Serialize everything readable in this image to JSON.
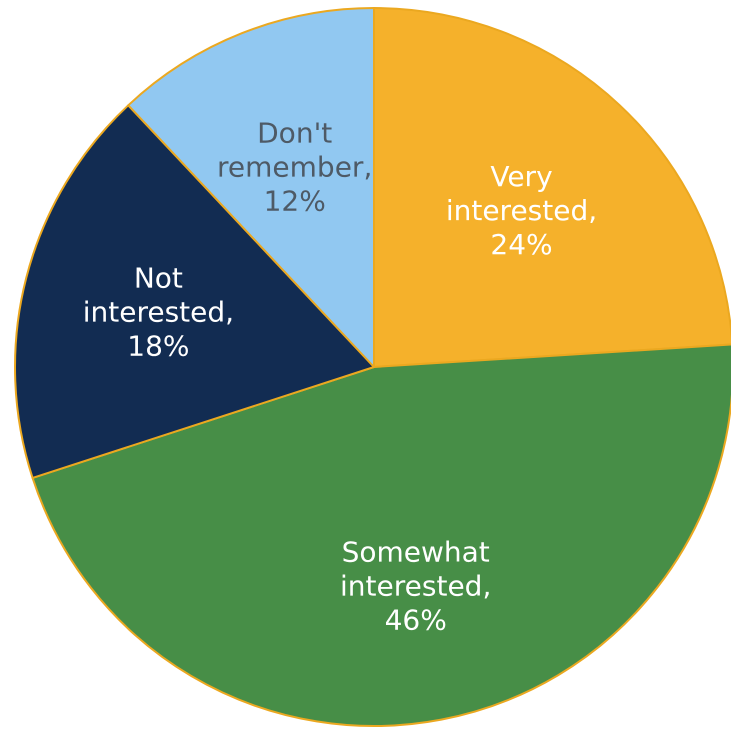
{
  "chart_data": {
    "type": "pie",
    "start_angle_deg": 0,
    "direction": "clockwise",
    "slices": [
      {
        "category": "Very interested",
        "value": 24,
        "label_lines": [
          "Very",
          "interested,",
          "24%"
        ],
        "color": "#F5B12B",
        "text_color": "#FFFFFF"
      },
      {
        "category": "Somewhat interested",
        "value": 46,
        "label_lines": [
          "Somewhat",
          "interested,",
          "46%"
        ],
        "color": "#478E47",
        "text_color": "#FFFFFF"
      },
      {
        "category": "Not interested",
        "value": 18,
        "label_lines": [
          "Not",
          "interested,",
          "18%"
        ],
        "color": "#122C52",
        "text_color": "#FFFFFF"
      },
      {
        "category": "Don't remember",
        "value": 12,
        "label_lines": [
          "Don't",
          "remember,",
          "12%"
        ],
        "color": "#91C8F1",
        "text_color": "#4E5A66"
      }
    ],
    "border_color": "#EBA820"
  }
}
